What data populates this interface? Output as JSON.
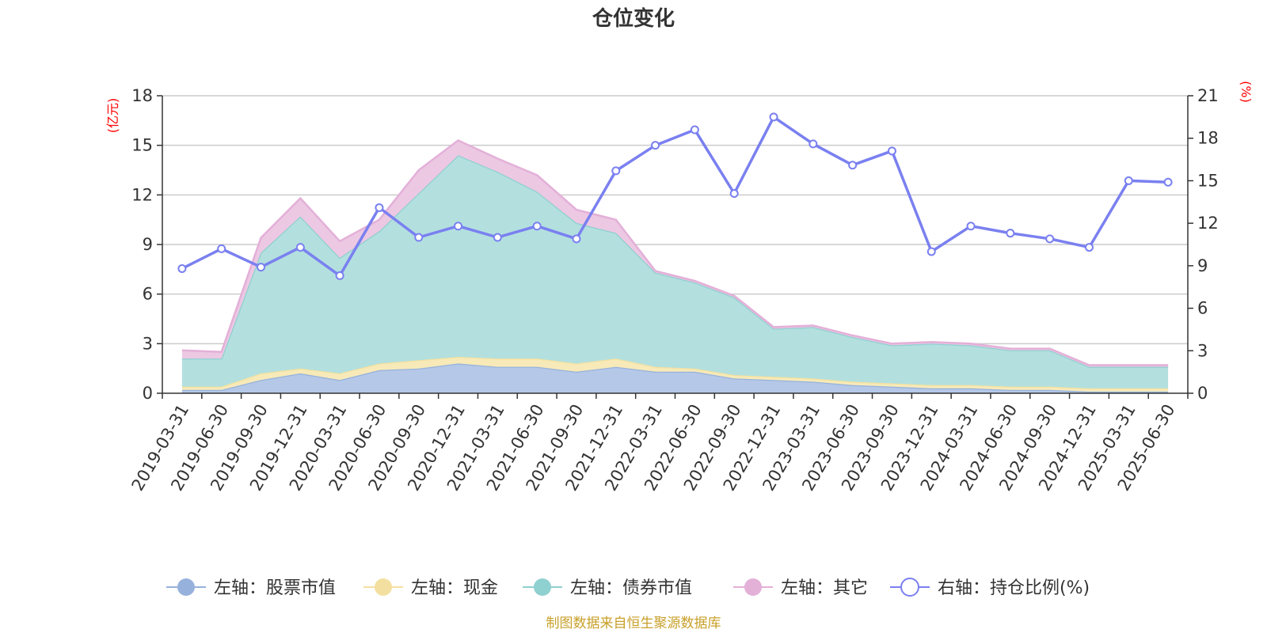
{
  "chart_data": {
    "type": "area",
    "title": "仓位变化",
    "source_note": "制图数据来自恒生聚源数据库",
    "left_axis": {
      "unit": "(亿元)",
      "ylim": [
        0,
        18
      ],
      "ticks": [
        "0",
        "3",
        "6",
        "9",
        "12",
        "15",
        "18"
      ]
    },
    "right_axis": {
      "unit": "(%)",
      "ylim": [
        0,
        21
      ],
      "ticks": [
        "0",
        "3",
        "6",
        "9",
        "12",
        "15",
        "18",
        "21"
      ]
    },
    "grid": true,
    "legend_position": "bottom",
    "categories": [
      "2019-03-31",
      "2019-06-30",
      "2019-09-30",
      "2019-12-31",
      "2020-03-31",
      "2020-06-30",
      "2020-09-30",
      "2020-12-31",
      "2021-03-31",
      "2021-06-30",
      "2021-09-30",
      "2021-12-31",
      "2022-03-31",
      "2022-06-30",
      "2022-09-30",
      "2022-12-31",
      "2023-03-31",
      "2023-06-30",
      "2023-09-30",
      "2023-12-31",
      "2024-03-31",
      "2024-06-30",
      "2024-09-30",
      "2024-12-31",
      "2025-03-31",
      "2025-06-30"
    ],
    "series": [
      {
        "name": "左轴：股票市值",
        "axis": "left",
        "stack": true,
        "color": "#96b2dc",
        "fill": "#b5c8e8",
        "values": [
          0.2,
          0.2,
          0.8,
          1.2,
          0.8,
          1.4,
          1.5,
          1.8,
          1.6,
          1.6,
          1.3,
          1.6,
          1.3,
          1.3,
          0.9,
          0.8,
          0.7,
          0.5,
          0.4,
          0.3,
          0.3,
          0.2,
          0.2,
          0.1,
          0.1,
          0.1
        ]
      },
      {
        "name": "左轴：现金",
        "axis": "left",
        "stack": true,
        "color": "#f3e0a0",
        "fill": "#f7eab8",
        "values": [
          0.2,
          0.2,
          0.4,
          0.3,
          0.4,
          0.4,
          0.5,
          0.4,
          0.5,
          0.5,
          0.5,
          0.5,
          0.3,
          0.2,
          0.2,
          0.2,
          0.2,
          0.2,
          0.2,
          0.2,
          0.2,
          0.2,
          0.2,
          0.2,
          0.2,
          0.2
        ]
      },
      {
        "name": "左轴：债券市值",
        "axis": "left",
        "stack": true,
        "color": "#8fd0d0",
        "fill": "#b3e0df",
        "values": [
          1.7,
          1.7,
          7.3,
          9.2,
          7.0,
          8.0,
          10.1,
          12.2,
          11.3,
          10.1,
          8.5,
          7.6,
          5.7,
          5.2,
          4.7,
          2.9,
          3.1,
          2.7,
          2.3,
          2.5,
          2.4,
          2.2,
          2.2,
          1.3,
          1.3,
          1.3
        ]
      },
      {
        "name": "左轴：其它",
        "axis": "left",
        "stack": true,
        "color": "#e3b0d8",
        "fill": "#ecc8e3",
        "values": [
          0.5,
          0.4,
          0.9,
          1.1,
          1.0,
          0.7,
          1.4,
          0.9,
          0.8,
          1.0,
          0.8,
          0.8,
          0.1,
          0.1,
          0.1,
          0.1,
          0.1,
          0.1,
          0.1,
          0.1,
          0.1,
          0.1,
          0.1,
          0.1,
          0.1,
          0.1
        ]
      },
      {
        "name": "右轴：持仓比例(%)",
        "axis": "right",
        "type": "line",
        "color": "#7a80f0",
        "values": [
          8.8,
          10.2,
          8.9,
          10.3,
          8.3,
          13.1,
          11.0,
          11.8,
          11.0,
          11.8,
          10.9,
          15.7,
          17.5,
          18.6,
          14.1,
          19.5,
          17.6,
          16.1,
          17.1,
          10.0,
          11.8,
          11.3,
          10.9,
          10.3,
          15.0,
          14.9
        ]
      }
    ]
  }
}
